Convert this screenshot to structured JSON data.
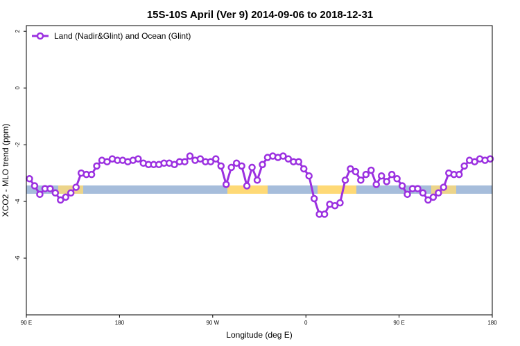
{
  "chart_data": {
    "type": "line",
    "title": "15S-10S April (Ver 9)   2014-09-06 to 2018-12-31",
    "x_label": "Longitude (deg E)",
    "y_label": "XCO2 - MLO trend (ppm)",
    "legend": "top-left",
    "xlim": [
      90,
      540
    ],
    "xticks": [
      {
        "value": 90,
        "label": "90 E"
      },
      180,
      {
        "value": 270,
        "label": "90 W"
      },
      {
        "value": 360,
        "label": "0"
      },
      {
        "value": 450,
        "label": "90 E"
      },
      {
        "value": 540,
        "label": "180"
      }
    ],
    "ylim": [
      -8,
      2.2
    ],
    "yticks": [
      2,
      0,
      -2,
      -4,
      -6
    ],
    "x": [
      93,
      98,
      103,
      108,
      113,
      118,
      123,
      128,
      133,
      138,
      143,
      148,
      153,
      158,
      163,
      168,
      173,
      178,
      183,
      188,
      193,
      198,
      203,
      208,
      213,
      218,
      223,
      228,
      233,
      238,
      243,
      248,
      253,
      258,
      263,
      268,
      273,
      278,
      283,
      288,
      293,
      298,
      303,
      308,
      313,
      318,
      323,
      328,
      333,
      338,
      343,
      348,
      353,
      358,
      363,
      368,
      373,
      378,
      383,
      388,
      393,
      398,
      403,
      408,
      413,
      418,
      423,
      428,
      433,
      438,
      443,
      448,
      453,
      458,
      463,
      468,
      473,
      478,
      483,
      488,
      493,
      498,
      503,
      508,
      513,
      518,
      523,
      528,
      533,
      538
    ],
    "series": [
      {
        "name": "Land (Nadir&Glint) and Ocean (Glint)",
        "color": "#9b30e0",
        "values": [
          -3.2,
          -3.45,
          -3.75,
          -3.55,
          -3.55,
          -3.7,
          -3.95,
          -3.85,
          -3.7,
          -3.5,
          -3.0,
          -3.05,
          -3.05,
          -2.75,
          -2.55,
          -2.6,
          -2.5,
          -2.55,
          -2.55,
          -2.6,
          -2.55,
          -2.5,
          -2.65,
          -2.7,
          -2.7,
          -2.7,
          -2.65,
          -2.65,
          -2.7,
          -2.6,
          -2.6,
          -2.4,
          -2.55,
          -2.5,
          -2.6,
          -2.6,
          -2.5,
          -2.75,
          -3.4,
          -2.8,
          -2.65,
          -2.75,
          -3.45,
          -2.8,
          -3.25,
          -2.7,
          -2.45,
          -2.4,
          -2.45,
          -2.4,
          -2.5,
          -2.6,
          -2.6,
          -2.85,
          -3.1,
          -3.9,
          -4.45,
          -4.45,
          -4.1,
          -4.15,
          -4.05,
          -3.25,
          -2.85,
          -2.95,
          -3.25,
          -3.05,
          -2.9,
          -3.4,
          -3.1,
          -3.3,
          -3.05,
          -3.2,
          -3.45,
          -3.75,
          -3.55,
          -3.55,
          -3.7,
          -3.95,
          -3.85,
          -3.7,
          -3.5,
          -3.0,
          -3.05,
          -3.05,
          -2.75,
          -2.55,
          -2.6,
          -2.5,
          -2.55,
          -2.5
        ]
      }
    ]
  }
}
